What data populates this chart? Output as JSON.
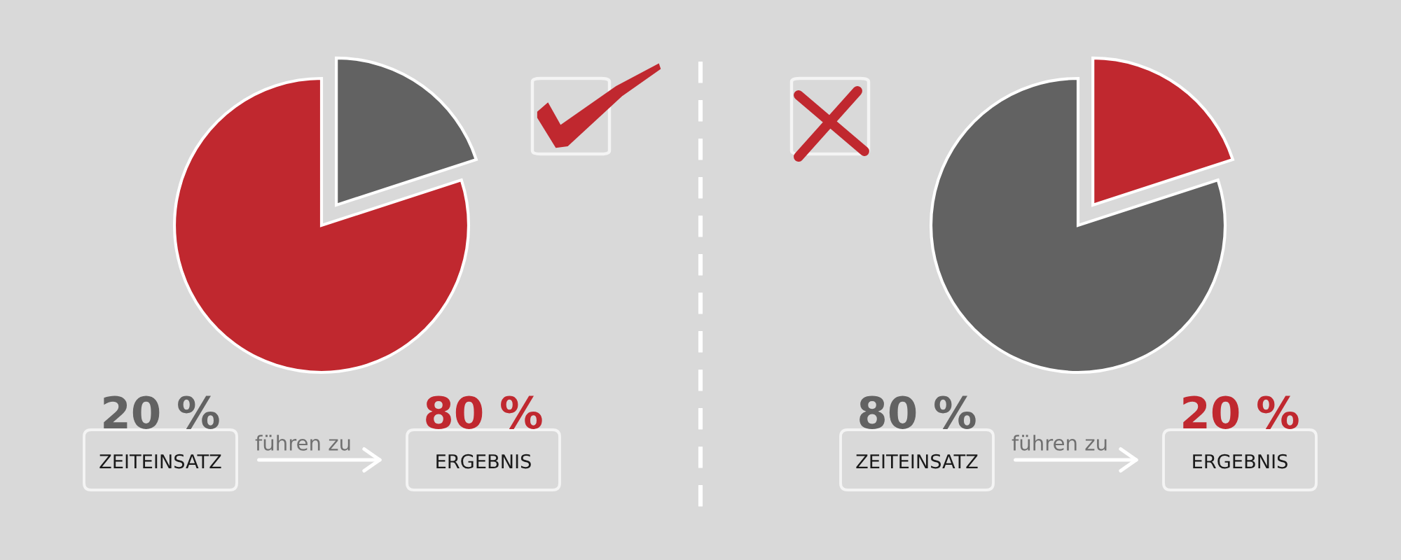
{
  "chart_data": [
    {
      "type": "pie",
      "categories": [
        null,
        null
      ],
      "values": [
        20,
        80
      ],
      "colors": [
        "#626262",
        "#c0282f"
      ],
      "annotations": [
        "20 %",
        "ZEITEINSATZ",
        "führen zu",
        "80 %",
        "ERGEBNIS"
      ]
    },
    {
      "type": "pie",
      "categories": [
        null,
        null
      ],
      "values": [
        80,
        20
      ],
      "colors": [
        "#626262",
        "#c0282f"
      ],
      "annotations": [
        "80 %",
        "ZEITEINSATZ",
        "führen zu",
        "20 %",
        "ERGEBNIS"
      ]
    }
  ]
}
